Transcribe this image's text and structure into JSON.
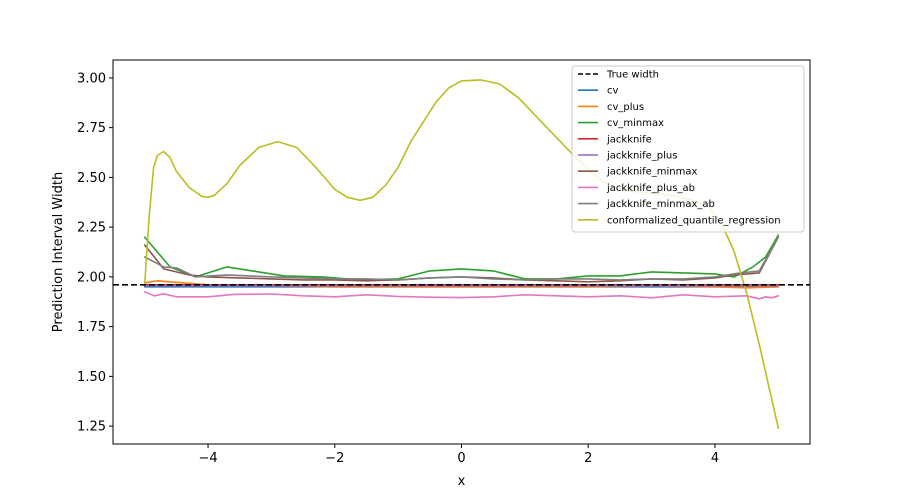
{
  "chart_data": {
    "type": "line",
    "title": "",
    "xlabel": "x",
    "ylabel": "Prediction Interval Width",
    "xlim": [
      -5.5,
      5.5
    ],
    "ylim": [
      1.16,
      3.09
    ],
    "xticks": [
      -4,
      -2,
      0,
      2,
      4
    ],
    "xtick_labels": [
      "−4",
      "−2",
      "0",
      "2",
      "4"
    ],
    "yticks": [
      1.25,
      1.5,
      1.75,
      2.0,
      2.25,
      2.5,
      2.75,
      3.0
    ],
    "ytick_labels": [
      "1.25",
      "1.50",
      "1.75",
      "2.00",
      "2.25",
      "2.50",
      "2.75",
      "3.00"
    ],
    "grid": false,
    "legend_location": "top-right",
    "reference_line": {
      "name": "True width",
      "y": 1.96,
      "style": "dashed",
      "color": "#000000"
    },
    "series": [
      {
        "name": "cv",
        "color": "#1f77b4",
        "x": [
          -5,
          -4,
          -3,
          -2,
          -1,
          0,
          1,
          2,
          3,
          4,
          5
        ],
        "y": [
          1.95,
          1.95,
          1.95,
          1.95,
          1.95,
          1.95,
          1.95,
          1.95,
          1.95,
          1.95,
          1.95
        ]
      },
      {
        "name": "cv_plus",
        "color": "#ff7f0e",
        "x": [
          -5,
          -4.8,
          -4,
          -3,
          -2,
          -1,
          0,
          1,
          2,
          3,
          4,
          4.5,
          5
        ],
        "y": [
          1.97,
          1.98,
          1.96,
          1.955,
          1.95,
          1.95,
          1.95,
          1.95,
          1.95,
          1.955,
          1.95,
          1.945,
          1.95
        ]
      },
      {
        "name": "cv_minmax",
        "color": "#2ca02c",
        "x": [
          -5,
          -4.6,
          -4.2,
          -3.7,
          -3.3,
          -2.8,
          -2.2,
          -1.6,
          -1,
          -0.5,
          0,
          0.5,
          1,
          1.5,
          2,
          2.5,
          3,
          3.5,
          4,
          4.3,
          4.6,
          4.8,
          5
        ],
        "y": [
          2.2,
          2.05,
          2.0,
          2.05,
          2.03,
          2.005,
          2.0,
          1.985,
          1.99,
          2.03,
          2.04,
          2.03,
          1.99,
          1.99,
          2.005,
          2.005,
          2.025,
          2.02,
          2.015,
          2.0,
          2.05,
          2.1,
          2.21
        ]
      },
      {
        "name": "jackknife",
        "color": "#d62728",
        "x": [
          -5,
          -4,
          -3,
          -2,
          -1,
          0,
          1,
          2,
          3,
          4,
          5
        ],
        "y": [
          1.96,
          1.96,
          1.96,
          1.96,
          1.96,
          1.96,
          1.96,
          1.96,
          1.96,
          1.96,
          1.96
        ]
      },
      {
        "name": "jackknife_plus",
        "color": "#9467bd",
        "x": [
          -5,
          -4,
          -3,
          -2,
          -1,
          0,
          1,
          2,
          3,
          4,
          5
        ],
        "y": [
          1.955,
          1.955,
          1.955,
          1.955,
          1.955,
          1.955,
          1.955,
          1.955,
          1.955,
          1.955,
          1.955
        ]
      },
      {
        "name": "jackknife_minmax",
        "color": "#8c564b",
        "x": [
          -5,
          -4.7,
          -4.3,
          -4,
          -3.5,
          -3,
          -2.5,
          -2,
          -1.5,
          -1,
          -0.5,
          0,
          0.5,
          1,
          1.5,
          2,
          2.5,
          3,
          3.5,
          4,
          4.3,
          4.7,
          5
        ],
        "y": [
          2.16,
          2.04,
          2.01,
          2.0,
          1.995,
          1.99,
          1.985,
          1.985,
          1.98,
          1.985,
          1.995,
          2.0,
          1.995,
          1.985,
          1.98,
          1.975,
          1.98,
          1.99,
          1.985,
          1.995,
          2.01,
          2.02,
          2.2
        ]
      },
      {
        "name": "jackknife_plus_ab",
        "color": "#e377c2",
        "x": [
          -5,
          -4.85,
          -4.7,
          -4.5,
          -4,
          -3.6,
          -3,
          -2.5,
          -2,
          -1.5,
          -1,
          -0.5,
          0,
          0.5,
          1,
          1.5,
          2,
          2.5,
          3,
          3.5,
          4,
          4.5,
          4.7,
          4.8,
          4.9,
          5
        ],
        "y": [
          1.925,
          1.905,
          1.915,
          1.9,
          1.9,
          1.912,
          1.914,
          1.905,
          1.9,
          1.91,
          1.902,
          1.898,
          1.896,
          1.9,
          1.91,
          1.905,
          1.9,
          1.905,
          1.895,
          1.91,
          1.9,
          1.905,
          1.89,
          1.9,
          1.895,
          1.905
        ]
      },
      {
        "name": "jackknife_minmax_ab",
        "color": "#7f7f7f",
        "x": [
          -5,
          -4.7,
          -4.5,
          -4.2,
          -3.7,
          -3,
          -2.5,
          -2,
          -1.5,
          -1,
          -0.5,
          0,
          0.5,
          1,
          1.5,
          2,
          2.5,
          3,
          3.5,
          4,
          4.4,
          4.7,
          5
        ],
        "y": [
          2.1,
          2.05,
          2.045,
          2.0,
          2.01,
          2.0,
          1.995,
          1.99,
          1.99,
          1.985,
          1.995,
          2.0,
          1.99,
          1.985,
          1.99,
          1.99,
          1.985,
          1.99,
          1.99,
          2.0,
          2.02,
          2.03,
          2.2
        ]
      },
      {
        "name": "conformalized_quantile_regression",
        "color": "#bcbd22",
        "x": [
          -5,
          -4.93,
          -4.86,
          -4.8,
          -4.7,
          -4.6,
          -4.5,
          -4.3,
          -4.1,
          -4.0,
          -3.9,
          -3.7,
          -3.5,
          -3.2,
          -2.9,
          -2.6,
          -2.3,
          -2.0,
          -1.8,
          -1.6,
          -1.4,
          -1.2,
          -1.0,
          -0.8,
          -0.6,
          -0.4,
          -0.2,
          0,
          0.3,
          0.6,
          0.9,
          1.2,
          1.5,
          1.8,
          2.1,
          2.4,
          2.7,
          3.0,
          3.3,
          3.6,
          3.9,
          4.1,
          4.3,
          4.5,
          4.7,
          4.85,
          5
        ],
        "y": [
          1.96,
          2.3,
          2.55,
          2.61,
          2.63,
          2.6,
          2.53,
          2.45,
          2.405,
          2.4,
          2.41,
          2.47,
          2.56,
          2.65,
          2.68,
          2.65,
          2.55,
          2.44,
          2.4,
          2.385,
          2.4,
          2.46,
          2.55,
          2.68,
          2.78,
          2.88,
          2.95,
          2.985,
          2.99,
          2.97,
          2.9,
          2.8,
          2.7,
          2.6,
          2.51,
          2.45,
          2.43,
          2.42,
          2.41,
          2.39,
          2.35,
          2.27,
          2.13,
          1.92,
          1.66,
          1.45,
          1.24
        ]
      }
    ]
  }
}
